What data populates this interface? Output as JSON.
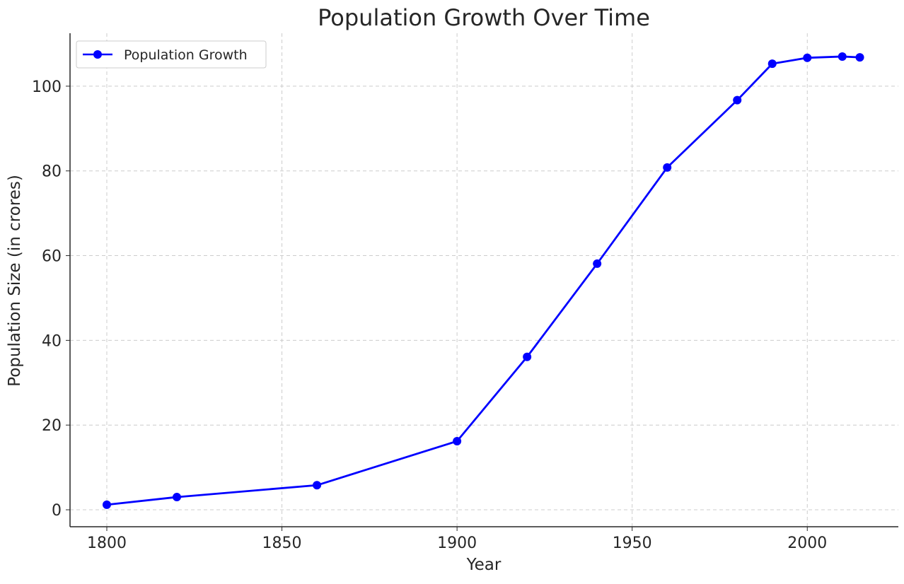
{
  "chart_data": {
    "type": "line",
    "title": "Population Growth Over Time",
    "xlabel": "Year",
    "ylabel": "Population Size (in crores)",
    "xlim": [
      1789.5,
      2026
    ],
    "ylim": [
      -4,
      112.5
    ],
    "xticks": [
      1800,
      1850,
      1900,
      1950,
      2000
    ],
    "yticks": [
      0,
      20,
      40,
      60,
      80,
      100
    ],
    "grid": true,
    "legend": "top-left",
    "series": [
      {
        "name": "Population Growth",
        "color": "#0000ff",
        "marker": "circle",
        "x": [
          1800,
          1820,
          1860,
          1900,
          1920,
          1940,
          1960,
          1980,
          1990,
          2000,
          2010,
          2015
        ],
        "y": [
          1.2,
          3.0,
          5.8,
          16.2,
          36.1,
          58.1,
          80.8,
          96.7,
          105.3,
          106.7,
          107.0,
          106.8
        ]
      }
    ]
  }
}
